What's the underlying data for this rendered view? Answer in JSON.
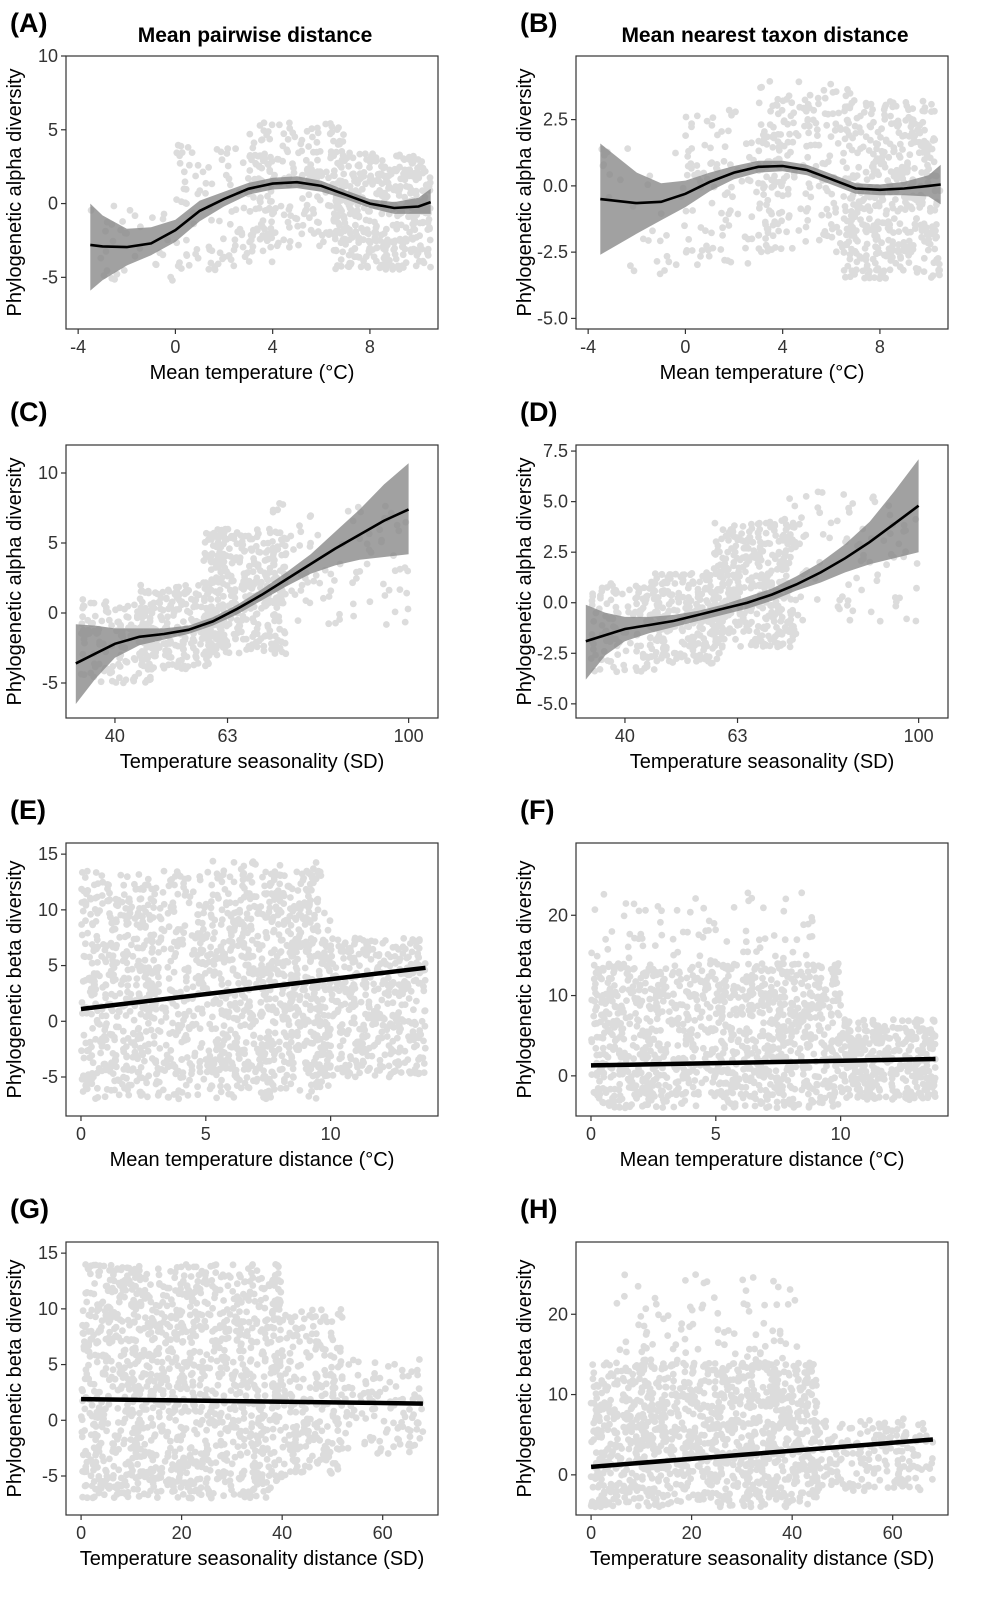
{
  "chart_data": [
    {
      "id": "A",
      "letter": "(A)",
      "type": "scatter",
      "title": "Mean pairwise distance",
      "xlabel": "Mean temperature (°C)",
      "ylabel": "Phylogenetic alpha diversity",
      "xlim": [
        -4.5,
        10.8
      ],
      "ylim": [
        -8.5,
        10
      ],
      "xticks": [
        {
          "v": -4,
          "label": "-4"
        },
        {
          "v": 0,
          "label": "0"
        },
        {
          "v": 4,
          "label": "4"
        },
        {
          "v": 8,
          "label": "8"
        }
      ],
      "yticks": [
        {
          "v": -5,
          "label": "-5"
        },
        {
          "v": 0,
          "label": "0"
        },
        {
          "v": 5,
          "label": "5"
        },
        {
          "v": 10,
          "label": "10"
        }
      ],
      "fit": {
        "type": "smooth",
        "x": [
          -3.5,
          -3,
          -2,
          -1,
          0,
          1,
          2,
          3,
          4,
          5,
          6,
          7,
          8,
          9,
          10,
          10.5
        ],
        "y": [
          -2.8,
          -2.9,
          -2.95,
          -2.7,
          -1.8,
          -0.5,
          0.3,
          1.0,
          1.35,
          1.45,
          1.2,
          0.6,
          0.0,
          -0.3,
          -0.2,
          0.1
        ],
        "lower": [
          -5.9,
          -5.2,
          -4.2,
          -3.5,
          -2.6,
          -1.2,
          -0.2,
          0.6,
          0.95,
          1.05,
          0.8,
          0.3,
          -0.3,
          -0.7,
          -0.7,
          -0.7
        ],
        "upper": [
          0.0,
          -0.8,
          -1.7,
          -1.6,
          -1.1,
          0.2,
          0.8,
          1.4,
          1.75,
          1.85,
          1.55,
          0.9,
          0.3,
          0.1,
          0.4,
          1.0
        ]
      },
      "cloud": [
        {
          "x0": -3.5,
          "x1": 0.5,
          "y0": -5.5,
          "y1": 1,
          "n": 35
        },
        {
          "x0": 0,
          "x1": 4,
          "y0": -4.5,
          "y1": 4,
          "n": 120
        },
        {
          "x0": 3,
          "x1": 7,
          "y0": -3,
          "y1": 5.5,
          "n": 200
        },
        {
          "x0": 6.5,
          "x1": 10.5,
          "y0": -4.5,
          "y1": 3.5,
          "n": 420
        }
      ]
    },
    {
      "id": "B",
      "letter": "(B)",
      "type": "scatter",
      "title": "Mean nearest taxon distance",
      "xlabel": "Mean temperature (°C)",
      "ylabel": "Phylogenetic alpha diversity",
      "xlim": [
        -4.5,
        10.8
      ],
      "ylim": [
        -5.4,
        4.9
      ],
      "xticks": [
        {
          "v": -4,
          "label": "-4"
        },
        {
          "v": 0,
          "label": "0"
        },
        {
          "v": 4,
          "label": "4"
        },
        {
          "v": 8,
          "label": "8"
        }
      ],
      "yticks": [
        {
          "v": -5,
          "label": "-5.0"
        },
        {
          "v": -2.5,
          "label": "-2.5"
        },
        {
          "v": 0,
          "label": "0.0"
        },
        {
          "v": 2.5,
          "label": "2.5"
        }
      ],
      "fit": {
        "type": "smooth",
        "x": [
          -3.5,
          -2,
          -1,
          0,
          1,
          2,
          3,
          4,
          5,
          6,
          7,
          8,
          9,
          10,
          10.5
        ],
        "y": [
          -0.5,
          -0.65,
          -0.6,
          -0.3,
          0.15,
          0.5,
          0.72,
          0.75,
          0.6,
          0.25,
          -0.1,
          -0.15,
          -0.1,
          0.0,
          0.05
        ],
        "lower": [
          -2.6,
          -1.8,
          -1.3,
          -0.8,
          -0.2,
          0.25,
          0.5,
          0.55,
          0.4,
          0.05,
          -0.3,
          -0.35,
          -0.35,
          -0.4,
          -0.7
        ],
        "upper": [
          1.6,
          0.5,
          0.1,
          0.2,
          0.5,
          0.75,
          0.95,
          0.95,
          0.8,
          0.45,
          0.1,
          0.05,
          0.15,
          0.4,
          0.8
        ]
      },
      "cloud": [
        {
          "x0": -3.5,
          "x1": 0.5,
          "y0": -3.5,
          "y1": 1.5,
          "n": 35
        },
        {
          "x0": 0,
          "x1": 4,
          "y0": -3,
          "y1": 3,
          "n": 120
        },
        {
          "x0": 3,
          "x1": 7,
          "y0": -2.5,
          "y1": 4,
          "n": 200
        },
        {
          "x0": 6.5,
          "x1": 10.5,
          "y0": -3.5,
          "y1": 3.2,
          "n": 420
        }
      ]
    },
    {
      "id": "C",
      "letter": "(C)",
      "type": "scatter",
      "title": "",
      "xlabel": "Temperature seasonality (SD)",
      "ylabel": "Phylogenetic alpha diversity",
      "xlim": [
        30,
        106
      ],
      "ylim": [
        -7.5,
        12
      ],
      "xticks": [
        {
          "v": 40,
          "label": "40"
        },
        {
          "v": 63,
          "label": "63"
        },
        {
          "v": 100,
          "label": "100"
        }
      ],
      "yticks": [
        {
          "v": -5,
          "label": "-5"
        },
        {
          "v": 0,
          "label": "0"
        },
        {
          "v": 5,
          "label": "5"
        },
        {
          "v": 10,
          "label": "10"
        }
      ],
      "fit": {
        "type": "smooth",
        "x": [
          32,
          36,
          40,
          45,
          50,
          55,
          60,
          65,
          70,
          75,
          80,
          85,
          90,
          95,
          100
        ],
        "y": [
          -3.6,
          -2.9,
          -2.2,
          -1.7,
          -1.5,
          -1.2,
          -0.6,
          0.3,
          1.3,
          2.4,
          3.5,
          4.6,
          5.6,
          6.6,
          7.4
        ],
        "lower": [
          -6.5,
          -4.7,
          -3.2,
          -2.3,
          -1.9,
          -1.5,
          -0.9,
          -0.1,
          0.9,
          1.9,
          2.8,
          3.4,
          3.8,
          4.0,
          4.2
        ],
        "upper": [
          -0.8,
          -0.9,
          -1.1,
          -1.1,
          -1.1,
          -0.9,
          -0.3,
          0.6,
          1.7,
          2.9,
          4.2,
          5.8,
          7.4,
          9.2,
          10.7
        ]
      },
      "cloud": [
        {
          "x0": 33,
          "x1": 48,
          "y0": -5,
          "y1": 1,
          "n": 130
        },
        {
          "x0": 45,
          "x1": 60,
          "y0": -4,
          "y1": 2,
          "n": 220
        },
        {
          "x0": 58,
          "x1": 75,
          "y0": -3,
          "y1": 6,
          "n": 380
        },
        {
          "x0": 72,
          "x1": 100,
          "y0": -1,
          "y1": 8,
          "n": 90
        }
      ]
    },
    {
      "id": "D",
      "letter": "(D)",
      "type": "scatter",
      "title": "",
      "xlabel": "Temperature seasonality (SD)",
      "ylabel": "Phylogenetic alpha diversity",
      "xlim": [
        30,
        106
      ],
      "ylim": [
        -5.7,
        7.8
      ],
      "xticks": [
        {
          "v": 40,
          "label": "40"
        },
        {
          "v": 63,
          "label": "63"
        },
        {
          "v": 100,
          "label": "100"
        }
      ],
      "yticks": [
        {
          "v": -5,
          "label": "-5.0"
        },
        {
          "v": -2.5,
          "label": "-2.5"
        },
        {
          "v": 0,
          "label": "0.0"
        },
        {
          "v": 2.5,
          "label": "2.5"
        },
        {
          "v": 5,
          "label": "5.0"
        },
        {
          "v": 7.5,
          "label": "7.5"
        }
      ],
      "fit": {
        "type": "smooth",
        "x": [
          32,
          36,
          40,
          45,
          50,
          55,
          60,
          65,
          70,
          75,
          80,
          85,
          90,
          95,
          100
        ],
        "y": [
          -1.9,
          -1.6,
          -1.3,
          -1.1,
          -0.9,
          -0.6,
          -0.3,
          0.0,
          0.4,
          0.9,
          1.5,
          2.2,
          3.0,
          3.9,
          4.8
        ],
        "lower": [
          -3.8,
          -2.6,
          -1.9,
          -1.5,
          -1.2,
          -0.9,
          -0.6,
          -0.3,
          0.1,
          0.6,
          1.0,
          1.5,
          1.9,
          2.2,
          2.5
        ],
        "upper": [
          -0.1,
          -0.5,
          -0.7,
          -0.7,
          -0.6,
          -0.4,
          -0.1,
          0.3,
          0.7,
          1.3,
          2.0,
          2.9,
          4.0,
          5.5,
          7.1
        ]
      },
      "cloud": [
        {
          "x0": 33,
          "x1": 48,
          "y0": -3.5,
          "y1": 1,
          "n": 130
        },
        {
          "x0": 45,
          "x1": 60,
          "y0": -3,
          "y1": 1.5,
          "n": 220
        },
        {
          "x0": 58,
          "x1": 75,
          "y0": -2.2,
          "y1": 4,
          "n": 380
        },
        {
          "x0": 72,
          "x1": 100,
          "y0": -1,
          "y1": 5.5,
          "n": 90
        }
      ]
    },
    {
      "id": "E",
      "letter": "(E)",
      "type": "scatter",
      "title": "",
      "xlabel": "Mean temperature distance (°C)",
      "ylabel": "Phylogenetic beta diversity",
      "xlim": [
        -0.6,
        14.3
      ],
      "ylim": [
        -8.5,
        16
      ],
      "xticks": [
        {
          "v": 0,
          "label": "0"
        },
        {
          "v": 5,
          "label": "5"
        },
        {
          "v": 10,
          "label": "10"
        }
      ],
      "yticks": [
        {
          "v": -5,
          "label": "-5"
        },
        {
          "v": 0,
          "label": "0"
        },
        {
          "v": 5,
          "label": "5"
        },
        {
          "v": 10,
          "label": "10"
        },
        {
          "v": 15,
          "label": "15"
        }
      ],
      "fit": {
        "type": "linear",
        "x": [
          0,
          13.8
        ],
        "y": [
          1.1,
          4.8
        ]
      },
      "cloud": [
        {
          "x0": 0,
          "x1": 9.5,
          "y0": -7,
          "y1": 13.5,
          "n": 1200
        },
        {
          "x0": 5,
          "x1": 10,
          "y0": -6,
          "y1": 14.5,
          "n": 250
        },
        {
          "x0": 9.5,
          "x1": 13.8,
          "y0": -5,
          "y1": 7.5,
          "n": 450
        }
      ]
    },
    {
      "id": "F",
      "letter": "(F)",
      "type": "scatter",
      "title": "",
      "xlabel": "Mean temperature distance (°C)",
      "ylabel": "Phylogenetic beta diversity",
      "xlim": [
        -0.6,
        14.3
      ],
      "ylim": [
        -5,
        29
      ],
      "xticks": [
        {
          "v": 0,
          "label": "0"
        },
        {
          "v": 5,
          "label": "5"
        },
        {
          "v": 10,
          "label": "10"
        }
      ],
      "yticks": [
        {
          "v": 0,
          "label": "0"
        },
        {
          "v": 10,
          "label": "10"
        },
        {
          "v": 20,
          "label": "20"
        }
      ],
      "fit": {
        "type": "linear",
        "x": [
          0,
          13.8
        ],
        "y": [
          1.3,
          2.1
        ]
      },
      "cloud": [
        {
          "x0": 0,
          "x1": 10,
          "y0": -4,
          "y1": 14,
          "n": 1100
        },
        {
          "x0": 0,
          "x1": 9,
          "y0": 12,
          "y1": 23,
          "n": 90
        },
        {
          "x0": 10,
          "x1": 13.8,
          "y0": -3,
          "y1": 7,
          "n": 350
        }
      ]
    },
    {
      "id": "G",
      "letter": "(G)",
      "type": "scatter",
      "title": "",
      "xlabel": "Temperature seasonality distance (SD)",
      "ylabel": "Phylogenetic beta diversity",
      "xlim": [
        -3,
        71
      ],
      "ylim": [
        -8.5,
        16
      ],
      "xticks": [
        {
          "v": 0,
          "label": "0"
        },
        {
          "v": 20,
          "label": "20"
        },
        {
          "v": 40,
          "label": "40"
        },
        {
          "v": 60,
          "label": "60"
        }
      ],
      "yticks": [
        {
          "v": -5,
          "label": "-5"
        },
        {
          "v": 0,
          "label": "0"
        },
        {
          "v": 5,
          "label": "5"
        },
        {
          "v": 10,
          "label": "10"
        },
        {
          "v": 15,
          "label": "15"
        }
      ],
      "fit": {
        "type": "linear",
        "x": [
          0,
          68
        ],
        "y": [
          1.9,
          1.5
        ]
      },
      "cloud": [
        {
          "x0": 0,
          "x1": 40,
          "y0": -7,
          "y1": 14,
          "n": 1300
        },
        {
          "x0": 38,
          "x1": 52,
          "y0": -5,
          "y1": 10,
          "n": 250
        },
        {
          "x0": 50,
          "x1": 68,
          "y0": -3,
          "y1": 5.5,
          "n": 120
        }
      ]
    },
    {
      "id": "H",
      "letter": "(H)",
      "type": "scatter",
      "title": "",
      "xlabel": "Temperature seasonality distance (SD)",
      "ylabel": "Phylogenetic beta diversity",
      "xlim": [
        -3,
        71
      ],
      "ylim": [
        -5,
        29
      ],
      "xticks": [
        {
          "v": 0,
          "label": "0"
        },
        {
          "v": 20,
          "label": "20"
        },
        {
          "v": 40,
          "label": "40"
        },
        {
          "v": 60,
          "label": "60"
        }
      ],
      "yticks": [
        {
          "v": 0,
          "label": "0"
        },
        {
          "v": 10,
          "label": "10"
        },
        {
          "v": 20,
          "label": "20"
        }
      ],
      "fit": {
        "type": "linear",
        "x": [
          0,
          68
        ],
        "y": [
          1.0,
          4.4
        ]
      },
      "cloud": [
        {
          "x0": 0,
          "x1": 45,
          "y0": -4,
          "y1": 14,
          "n": 1200
        },
        {
          "x0": 5,
          "x1": 42,
          "y0": 13,
          "y1": 25,
          "n": 90
        },
        {
          "x0": 45,
          "x1": 68,
          "y0": -2,
          "y1": 7,
          "n": 200
        }
      ]
    }
  ]
}
